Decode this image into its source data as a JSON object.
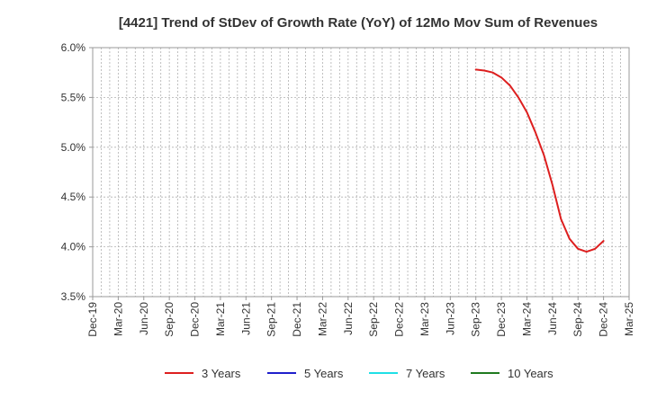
{
  "chart_data": {
    "type": "line",
    "title": "[4421]  Trend of StDev of Growth Rate (YoY) of 12Mo Mov Sum of Revenues",
    "xlabel": "",
    "ylabel": "",
    "ylim": [
      3.5,
      6.0
    ],
    "y_ticks": [
      "3.5%",
      "4.0%",
      "4.5%",
      "5.0%",
      "5.5%",
      "6.0%"
    ],
    "y_tick_values": [
      3.5,
      4.0,
      4.5,
      5.0,
      5.5,
      6.0
    ],
    "x_tick_labels": [
      "Dec-19",
      "Mar-20",
      "Jun-20",
      "Sep-20",
      "Dec-20",
      "Mar-21",
      "Jun-21",
      "Sep-21",
      "Dec-21",
      "Mar-22",
      "Jun-22",
      "Sep-22",
      "Dec-22",
      "Mar-23",
      "Jun-23",
      "Sep-23",
      "Dec-23",
      "Mar-24",
      "Jun-24",
      "Sep-24",
      "Dec-24",
      "Mar-25"
    ],
    "x_start": "Dec-19",
    "x_months_total": 63,
    "grid": true,
    "legend_position": "bottom",
    "series": [
      {
        "name": "3 Years",
        "color": "#dd1f1f",
        "month_index": [
          45,
          46,
          47,
          48,
          49,
          50,
          51,
          52,
          53,
          54,
          55,
          56,
          57,
          58,
          59,
          60
        ],
        "x": [
          "Sep-23",
          "Oct-23",
          "Nov-23",
          "Dec-23",
          "Jan-24",
          "Feb-24",
          "Mar-24",
          "Apr-24",
          "May-24",
          "Jun-24",
          "Jul-24",
          "Aug-24",
          "Sep-24",
          "Oct-24",
          "Nov-24",
          "Dec-24"
        ],
        "values": [
          5.78,
          5.77,
          5.75,
          5.7,
          5.62,
          5.5,
          5.35,
          5.15,
          4.92,
          4.62,
          4.28,
          4.08,
          3.98,
          3.95,
          3.98,
          4.06
        ]
      },
      {
        "name": "5 Years",
        "color": "#1f1fcc",
        "month_index": [],
        "x": [],
        "values": []
      },
      {
        "name": "7 Years",
        "color": "#1fe0e6",
        "month_index": [],
        "x": [],
        "values": []
      },
      {
        "name": "10 Years",
        "color": "#1f7a1f",
        "month_index": [],
        "x": [],
        "values": []
      }
    ]
  }
}
